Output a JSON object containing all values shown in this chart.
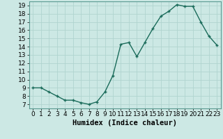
{
  "x": [
    0,
    1,
    2,
    3,
    4,
    5,
    6,
    7,
    8,
    9,
    10,
    11,
    12,
    13,
    14,
    15,
    16,
    17,
    18,
    19,
    20,
    21,
    22,
    23
  ],
  "y": [
    9,
    9,
    8.5,
    8,
    7.5,
    7.5,
    7.2,
    7,
    7.3,
    8.5,
    10.5,
    14.3,
    14.5,
    12.8,
    14.5,
    16.2,
    17.7,
    18.3,
    19.1,
    18.9,
    18.9,
    17.0,
    15.3,
    14.2
  ],
  "line_color": "#1a6b5a",
  "marker_color": "#1a6b5a",
  "bg_color": "#cce8e4",
  "grid_color": "#b0d4cf",
  "xlabel": "Humidex (Indice chaleur)",
  "xlim": [
    -0.5,
    23.5
  ],
  "ylim": [
    6.5,
    19.5
  ],
  "yticks": [
    7,
    8,
    9,
    10,
    11,
    12,
    13,
    14,
    15,
    16,
    17,
    18,
    19
  ],
  "xticks": [
    0,
    1,
    2,
    3,
    4,
    5,
    6,
    7,
    8,
    9,
    10,
    11,
    12,
    13,
    14,
    15,
    16,
    17,
    18,
    19,
    20,
    21,
    22,
    23
  ],
  "xlabel_fontsize": 7.5,
  "tick_fontsize": 6.5,
  "line_width": 1.0,
  "marker_size": 3.5
}
